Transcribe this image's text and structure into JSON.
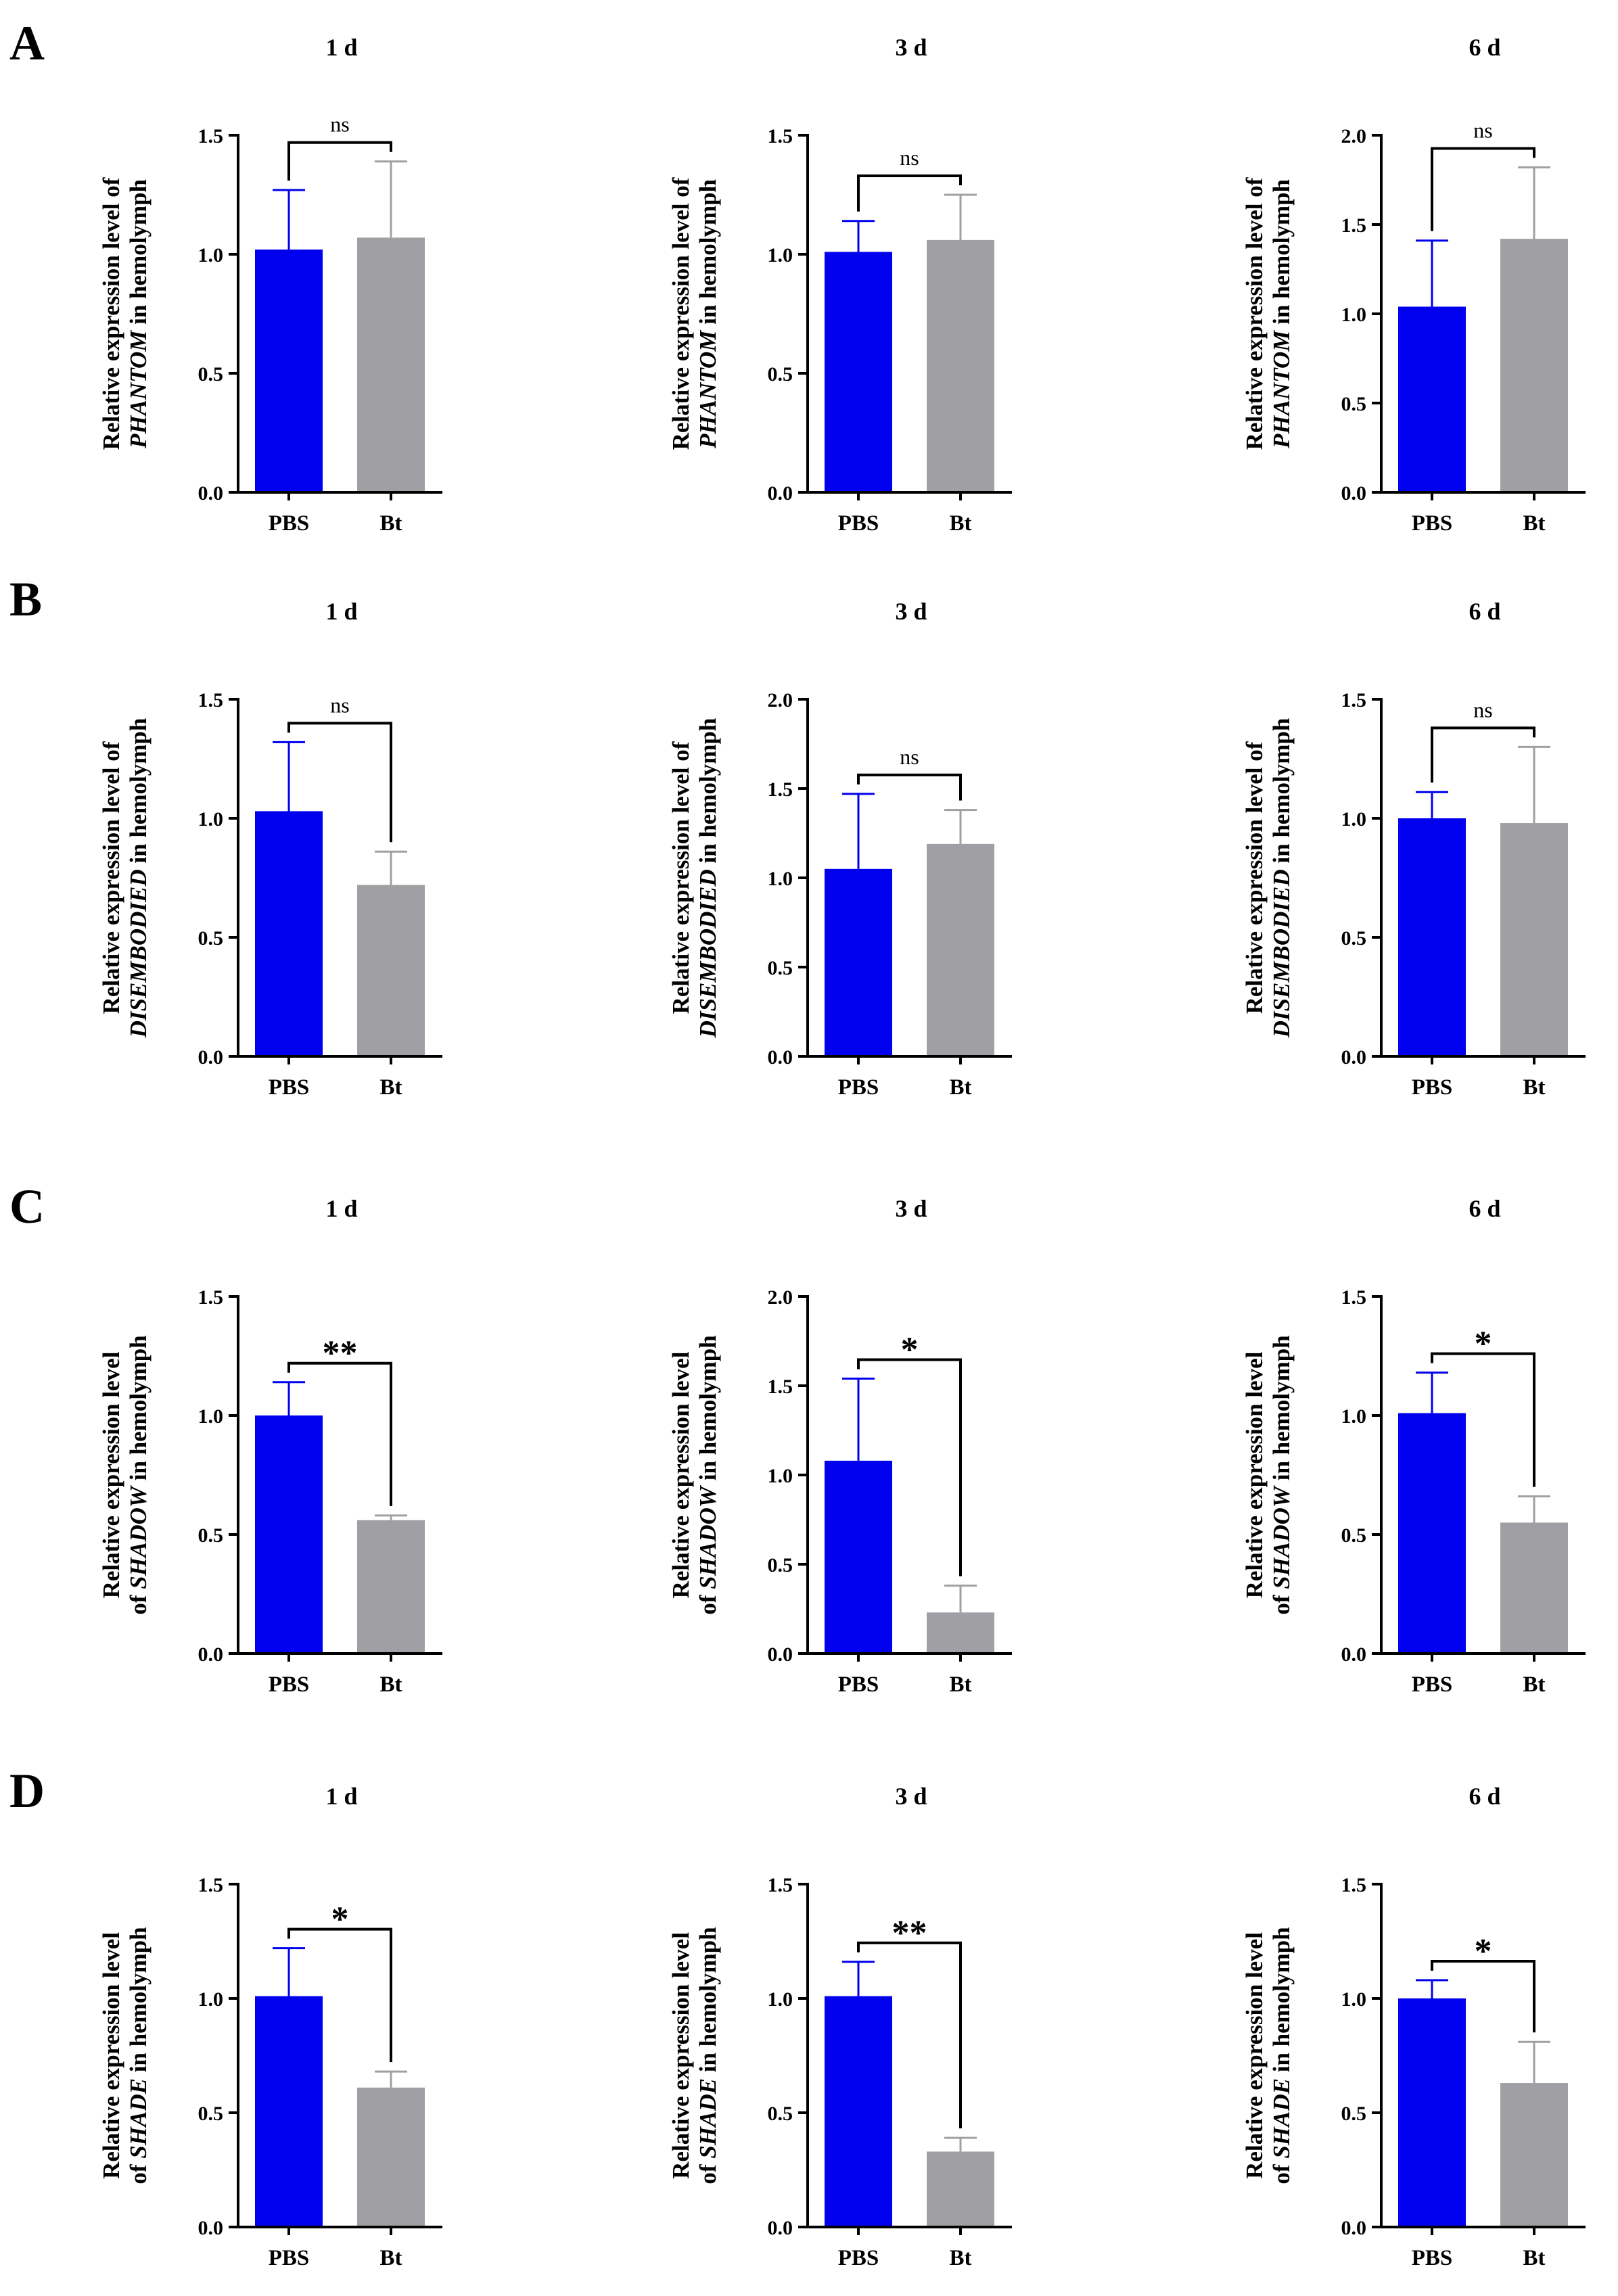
{
  "figure": {
    "ylabel_prefix": "Relative expression level",
    "ylabel_suffix": "in hemolymph",
    "categories": [
      "PBS",
      "Bt"
    ],
    "colors": {
      "PBS": "#0000ee",
      "Bt": "#a0a0a4"
    }
  },
  "panels": [
    {
      "letter": "A",
      "gene": "PHANTOM",
      "label_style": "split_of",
      "charts": [
        {
          "title": "1 d",
          "ylim": [
            0,
            1.5
          ],
          "ticks": [
            "0.0",
            "0.5",
            "1.0",
            "1.5"
          ],
          "values": [
            1.02,
            1.07
          ],
          "errors": [
            0.25,
            0.32
          ],
          "sig": "ns"
        },
        {
          "title": "3 d",
          "ylim": [
            0,
            1.5
          ],
          "ticks": [
            "0.0",
            "0.5",
            "1.0",
            "1.5"
          ],
          "values": [
            1.01,
            1.06
          ],
          "errors": [
            0.13,
            0.19
          ],
          "sig": "ns"
        },
        {
          "title": "6 d",
          "ylim": [
            0,
            2.0
          ],
          "ticks": [
            "0.0",
            "0.5",
            "1.0",
            "1.5",
            "2.0"
          ],
          "values": [
            1.04,
            1.42
          ],
          "errors": [
            0.37,
            0.4
          ],
          "sig": "ns"
        }
      ]
    },
    {
      "letter": "B",
      "gene": "DISEMBODIED",
      "label_style": "split_of",
      "charts": [
        {
          "title": "1 d",
          "ylim": [
            0,
            1.5
          ],
          "ticks": [
            "0.0",
            "0.5",
            "1.0",
            "1.5"
          ],
          "values": [
            1.03,
            0.72
          ],
          "errors": [
            0.29,
            0.14
          ],
          "sig": "ns"
        },
        {
          "title": "3 d",
          "ylim": [
            0,
            2.0
          ],
          "ticks": [
            "0.0",
            "0.5",
            "1.0",
            "1.5",
            "2.0"
          ],
          "values": [
            1.05,
            1.19
          ],
          "errors": [
            0.42,
            0.19
          ],
          "sig": "ns"
        },
        {
          "title": "6 d",
          "ylim": [
            0,
            1.5
          ],
          "ticks": [
            "0.0",
            "0.5",
            "1.0",
            "1.5"
          ],
          "values": [
            1.0,
            0.98
          ],
          "errors": [
            0.11,
            0.32
          ],
          "sig": "ns"
        }
      ]
    },
    {
      "letter": "C",
      "gene": "SHADOW",
      "label_style": "of_gene",
      "charts": [
        {
          "title": "1 d",
          "ylim": [
            0,
            1.5
          ],
          "ticks": [
            "0.0",
            "0.5",
            "1.0",
            "1.5"
          ],
          "values": [
            1.0,
            0.56
          ],
          "errors": [
            0.14,
            0.02
          ],
          "sig": "**"
        },
        {
          "title": "3 d",
          "ylim": [
            0,
            2.0
          ],
          "ticks": [
            "0.0",
            "0.5",
            "1.0",
            "1.5",
            "2.0"
          ],
          "values": [
            1.08,
            0.23
          ],
          "errors": [
            0.46,
            0.15
          ],
          "sig": "*"
        },
        {
          "title": "6 d",
          "ylim": [
            0,
            1.5
          ],
          "ticks": [
            "0.0",
            "0.5",
            "1.0",
            "1.5"
          ],
          "values": [
            1.01,
            0.55
          ],
          "errors": [
            0.17,
            0.11
          ],
          "sig": "*"
        }
      ]
    },
    {
      "letter": "D",
      "gene": "SHADE",
      "label_style": "of_gene",
      "charts": [
        {
          "title": "1 d",
          "ylim": [
            0,
            1.5
          ],
          "ticks": [
            "0.0",
            "0.5",
            "1.0",
            "1.5"
          ],
          "values": [
            1.01,
            0.61
          ],
          "errors": [
            0.21,
            0.07
          ],
          "sig": "*"
        },
        {
          "title": "3 d",
          "ylim": [
            0,
            1.5
          ],
          "ticks": [
            "0.0",
            "0.5",
            "1.0",
            "1.5"
          ],
          "values": [
            1.01,
            0.33
          ],
          "errors": [
            0.15,
            0.06
          ],
          "sig": "**"
        },
        {
          "title": "6 d",
          "ylim": [
            0,
            1.5
          ],
          "ticks": [
            "0.0",
            "0.5",
            "1.0",
            "1.5"
          ],
          "values": [
            1.0,
            0.63
          ],
          "errors": [
            0.08,
            0.18
          ],
          "sig": "*"
        }
      ]
    }
  ],
  "chart_data": [
    {
      "type": "bar",
      "title": "A 1 d",
      "categories": [
        "PBS",
        "Bt"
      ],
      "values": [
        1.02,
        1.07
      ],
      "error": [
        0.25,
        0.32
      ],
      "ylabel": "Relative expression level of PHANTOM in hemolymph",
      "ylim": [
        0,
        1.5
      ],
      "annotation": "ns"
    },
    {
      "type": "bar",
      "title": "A 3 d",
      "categories": [
        "PBS",
        "Bt"
      ],
      "values": [
        1.01,
        1.06
      ],
      "error": [
        0.13,
        0.19
      ],
      "ylabel": "Relative expression level of PHANTOM in hemolymph",
      "ylim": [
        0,
        1.5
      ],
      "annotation": "ns"
    },
    {
      "type": "bar",
      "title": "A 6 d",
      "categories": [
        "PBS",
        "Bt"
      ],
      "values": [
        1.04,
        1.42
      ],
      "error": [
        0.37,
        0.4
      ],
      "ylabel": "Relative expression level of PHANTOM in hemolymph",
      "ylim": [
        0,
        2.0
      ],
      "annotation": "ns"
    },
    {
      "type": "bar",
      "title": "B 1 d",
      "categories": [
        "PBS",
        "Bt"
      ],
      "values": [
        1.03,
        0.72
      ],
      "error": [
        0.29,
        0.14
      ],
      "ylabel": "Relative expression level of DISEMBODIED in hemolymph",
      "ylim": [
        0,
        1.5
      ],
      "annotation": "ns"
    },
    {
      "type": "bar",
      "title": "B 3 d",
      "categories": [
        "PBS",
        "Bt"
      ],
      "values": [
        1.05,
        1.19
      ],
      "error": [
        0.42,
        0.19
      ],
      "ylabel": "Relative expression level of DISEMBODIED in hemolymph",
      "ylim": [
        0,
        2.0
      ],
      "annotation": "ns"
    },
    {
      "type": "bar",
      "title": "B 6 d",
      "categories": [
        "PBS",
        "Bt"
      ],
      "values": [
        1.0,
        0.98
      ],
      "error": [
        0.11,
        0.32
      ],
      "ylabel": "Relative expression level of DISEMBODIED in hemolymph",
      "ylim": [
        0,
        1.5
      ],
      "annotation": "ns"
    },
    {
      "type": "bar",
      "title": "C 1 d",
      "categories": [
        "PBS",
        "Bt"
      ],
      "values": [
        1.0,
        0.56
      ],
      "error": [
        0.14,
        0.02
      ],
      "ylabel": "Relative expression level of SHADOW in hemolymph",
      "ylim": [
        0,
        1.5
      ],
      "annotation": "**"
    },
    {
      "type": "bar",
      "title": "C 3 d",
      "categories": [
        "PBS",
        "Bt"
      ],
      "values": [
        1.08,
        0.23
      ],
      "error": [
        0.46,
        0.15
      ],
      "ylabel": "Relative expression level of SHADOW in hemolymph",
      "ylim": [
        0,
        2.0
      ],
      "annotation": "*"
    },
    {
      "type": "bar",
      "title": "C 6 d",
      "categories": [
        "PBS",
        "Bt"
      ],
      "values": [
        1.01,
        0.55
      ],
      "error": [
        0.17,
        0.11
      ],
      "ylabel": "Relative expression level of SHADOW in hemolymph",
      "ylim": [
        0,
        1.5
      ],
      "annotation": "*"
    },
    {
      "type": "bar",
      "title": "D 1 d",
      "categories": [
        "PBS",
        "Bt"
      ],
      "values": [
        1.01,
        0.61
      ],
      "error": [
        0.21,
        0.07
      ],
      "ylabel": "Relative expression level of SHADE in hemolymph",
      "ylim": [
        0,
        1.5
      ],
      "annotation": "*"
    },
    {
      "type": "bar",
      "title": "D 3 d",
      "categories": [
        "PBS",
        "Bt"
      ],
      "values": [
        1.01,
        0.33
      ],
      "error": [
        0.15,
        0.06
      ],
      "ylabel": "Relative expression level of SHADE in hemolymph",
      "ylim": [
        0,
        1.5
      ],
      "annotation": "**"
    },
    {
      "type": "bar",
      "title": "D 6 d",
      "categories": [
        "PBS",
        "Bt"
      ],
      "values": [
        1.0,
        0.63
      ],
      "error": [
        0.08,
        0.18
      ],
      "ylabel": "Relative expression level of SHADE in hemolymph",
      "ylim": [
        0,
        1.5
      ],
      "annotation": "*"
    }
  ]
}
